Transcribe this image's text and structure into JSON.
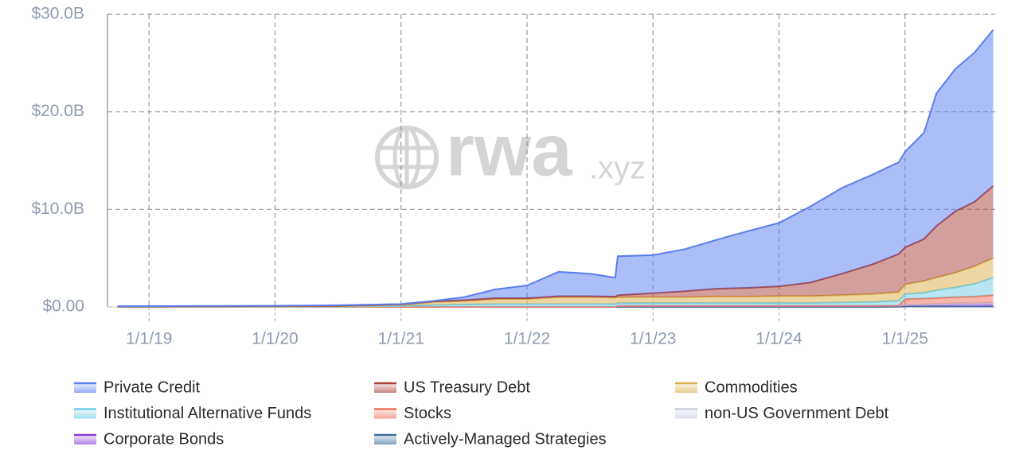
{
  "chart_data": {
    "type": "stacked_area",
    "watermark": {
      "main": "rwa",
      "suffix": ".xyz"
    },
    "x": [
      2018.75,
      2019,
      2019.5,
      2020,
      2020.5,
      2021,
      2021.25,
      2021.5,
      2021.75,
      2022,
      2022.25,
      2022.5,
      2022.7,
      2022.72,
      2023,
      2023.25,
      2023.5,
      2023.75,
      2024,
      2024.25,
      2024.5,
      2024.75,
      2024.95,
      2025,
      2025.15,
      2025.25,
      2025.4,
      2025.55,
      2025.7
    ],
    "xlim": [
      2018.67,
      2025.715
    ],
    "xticks": [
      {
        "value": 2019,
        "label": "1/1/19"
      },
      {
        "value": 2020,
        "label": "1/1/20"
      },
      {
        "value": 2021,
        "label": "1/1/21"
      },
      {
        "value": 2022,
        "label": "1/1/22"
      },
      {
        "value": 2023,
        "label": "1/1/23"
      },
      {
        "value": 2024,
        "label": "1/1/24"
      },
      {
        "value": 2025,
        "label": "1/1/25"
      }
    ],
    "ylim": [
      0,
      30
    ],
    "yticks": [
      {
        "value": 0,
        "label": "$0.00"
      },
      {
        "value": 10,
        "label": "$10.0B"
      },
      {
        "value": 20,
        "label": "$20.0B"
      },
      {
        "value": 30,
        "label": "$30.0B"
      }
    ],
    "grid": true,
    "series": [
      {
        "name": "Private Credit",
        "color": "#5a7ef0",
        "values": [
          0.02,
          0.03,
          0.03,
          0.03,
          0.06,
          0.05,
          0.05,
          0.3,
          0.9,
          1.3,
          2.5,
          2.3,
          1.95,
          4.0,
          3.9,
          4.3,
          5.0,
          5.8,
          6.5,
          7.8,
          8.8,
          9.2,
          9.4,
          9.8,
          10.9,
          13.6,
          14.6,
          15.3,
          16.0
        ]
      },
      {
        "name": "US Treasury Debt",
        "color": "#a8403c",
        "values": [
          0.01,
          0.01,
          0.02,
          0.03,
          0.04,
          0.05,
          0.05,
          0.1,
          0.1,
          0.1,
          0.1,
          0.1,
          0.1,
          0.2,
          0.4,
          0.6,
          0.8,
          0.9,
          1.0,
          1.4,
          2.2,
          3.1,
          3.9,
          3.8,
          4.3,
          5.3,
          6.3,
          6.6,
          7.4
        ]
      },
      {
        "name": "Commodities",
        "color": "#d9b04a",
        "values": [
          0.02,
          0.02,
          0.03,
          0.04,
          0.05,
          0.1,
          0.3,
          0.35,
          0.5,
          0.5,
          0.7,
          0.7,
          0.65,
          0.6,
          0.6,
          0.6,
          0.65,
          0.65,
          0.7,
          0.7,
          0.75,
          0.8,
          0.9,
          1.0,
          1.2,
          1.3,
          1.5,
          1.8,
          2.0
        ]
      },
      {
        "name": "Institutional Alternative Funds",
        "color": "#6fcde6",
        "values": [
          0.02,
          0.02,
          0.02,
          0.02,
          0.02,
          0.1,
          0.2,
          0.25,
          0.3,
          0.3,
          0.3,
          0.3,
          0.3,
          0.3,
          0.3,
          0.3,
          0.3,
          0.3,
          0.3,
          0.3,
          0.35,
          0.4,
          0.5,
          0.5,
          0.6,
          0.8,
          1.0,
          1.3,
          1.8
        ]
      },
      {
        "name": "Stocks",
        "color": "#f0705a",
        "values": [
          0,
          0,
          0,
          0,
          0,
          0,
          0,
          0,
          0,
          0,
          0,
          0,
          0,
          0,
          0,
          0,
          0,
          0,
          0,
          0,
          0,
          0,
          0,
          0.6,
          0.6,
          0.6,
          0.65,
          0.7,
          0.8
        ]
      },
      {
        "name": "non-US Government Debt",
        "color": "#c5cde0",
        "values": [
          0,
          0,
          0,
          0,
          0,
          0,
          0,
          0,
          0,
          0,
          0,
          0,
          0,
          0,
          0.01,
          0.01,
          0.01,
          0.01,
          0.01,
          0.01,
          0.01,
          0.01,
          0.01,
          0.01,
          0.01,
          0.01,
          0.01,
          0.01,
          0.01
        ]
      },
      {
        "name": "Corporate Bonds",
        "color": "#8a3fd6",
        "values": [
          0,
          0,
          0,
          0,
          0,
          0,
          0,
          0,
          0,
          0,
          0,
          0,
          0,
          0.1,
          0.1,
          0.1,
          0.1,
          0.1,
          0.1,
          0.1,
          0.1,
          0.1,
          0.1,
          0.15,
          0.2,
          0.25,
          0.3,
          0.3,
          0.35
        ]
      },
      {
        "name": "Actively-Managed Strategies",
        "color": "#3e6f9a",
        "values": [
          0,
          0,
          0,
          0,
          0,
          0,
          0,
          0,
          0,
          0,
          0,
          0,
          0,
          0,
          0,
          0,
          0,
          0,
          0,
          0,
          0,
          0,
          0.02,
          0.05,
          0.05,
          0.05,
          0.05,
          0.05,
          0.05
        ]
      }
    ]
  }
}
